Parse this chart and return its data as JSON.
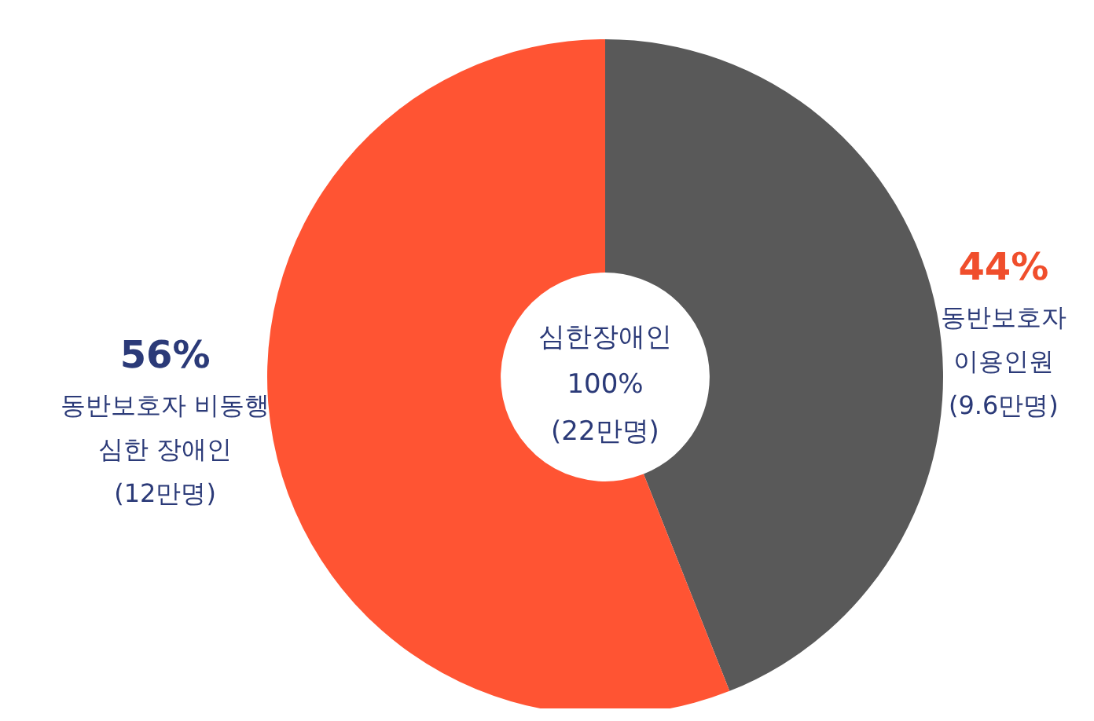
{
  "chart_data": {
    "type": "donut",
    "categories": [
      "동반보호자\n이용인원\n(9.6만명)",
      "동반보호자 비동행\n심한 장애인\n(12만명)"
    ],
    "values": [
      44,
      56
    ],
    "colors": [
      "#595959",
      "#ff5433"
    ],
    "value_labels": [
      "44%",
      "56%"
    ],
    "annotations": [
      "심한장애인\n100%\n(22만명)"
    ],
    "legend": false
  }
}
